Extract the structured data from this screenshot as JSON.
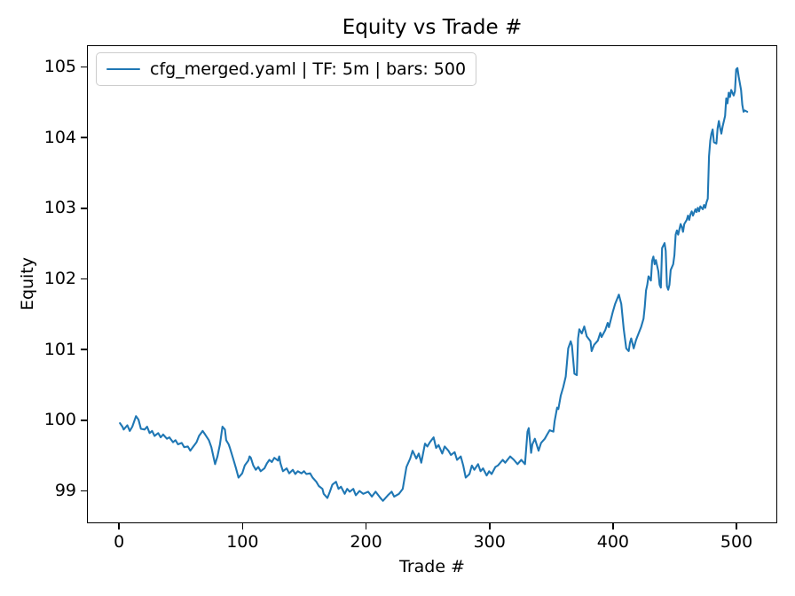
{
  "figure": {
    "background_color": "#ffffff",
    "text_color": "#000000",
    "spine_color": "#000000"
  },
  "legend": {
    "label": "cfg_merged.yaml | TF: 5m | bars: 500",
    "swatch_color": "#1f77b4",
    "border_color": "#cccccc"
  },
  "chart_data": {
    "type": "line",
    "title": "Equity vs Trade #",
    "xlabel": "Trade #",
    "ylabel": "Equity",
    "xlim": [
      -26,
      533
    ],
    "ylim": [
      98.54,
      105.31
    ],
    "xticks": [
      0,
      100,
      200,
      300,
      400,
      500
    ],
    "yticks": [
      99,
      100,
      101,
      102,
      103,
      104,
      105
    ],
    "grid": false,
    "legend_position": "upper-left",
    "series": [
      {
        "name": "cfg_merged.yaml | TF: 5m | bars: 500",
        "color": "#1f77b4",
        "line_width": 2.1,
        "points": [
          [
            0,
            99.97
          ],
          [
            2,
            99.92
          ],
          [
            3,
            99.88
          ],
          [
            6,
            99.94
          ],
          [
            8,
            99.86
          ],
          [
            10,
            99.92
          ],
          [
            13,
            100.07
          ],
          [
            15,
            100.02
          ],
          [
            17,
            99.89
          ],
          [
            20,
            99.88
          ],
          [
            22,
            99.92
          ],
          [
            24,
            99.83
          ],
          [
            26,
            99.86
          ],
          [
            28,
            99.79
          ],
          [
            31,
            99.83
          ],
          [
            33,
            99.77
          ],
          [
            35,
            99.81
          ],
          [
            38,
            99.75
          ],
          [
            40,
            99.77
          ],
          [
            43,
            99.7
          ],
          [
            45,
            99.73
          ],
          [
            47,
            99.67
          ],
          [
            50,
            99.69
          ],
          [
            52,
            99.63
          ],
          [
            55,
            99.64
          ],
          [
            57,
            99.58
          ],
          [
            59,
            99.63
          ],
          [
            62,
            99.7
          ],
          [
            64,
            99.79
          ],
          [
            67,
            99.86
          ],
          [
            69,
            99.81
          ],
          [
            72,
            99.73
          ],
          [
            74,
            99.63
          ],
          [
            76,
            99.47
          ],
          [
            77,
            99.39
          ],
          [
            79,
            99.5
          ],
          [
            81,
            99.67
          ],
          [
            83,
            99.92
          ],
          [
            85,
            99.88
          ],
          [
            86,
            99.73
          ],
          [
            88,
            99.67
          ],
          [
            89,
            99.62
          ],
          [
            92,
            99.45
          ],
          [
            94,
            99.33
          ],
          [
            96,
            99.2
          ],
          [
            99,
            99.26
          ],
          [
            101,
            99.37
          ],
          [
            104,
            99.44
          ],
          [
            105,
            99.5
          ],
          [
            106,
            99.48
          ],
          [
            108,
            99.37
          ],
          [
            110,
            99.31
          ],
          [
            112,
            99.35
          ],
          [
            114,
            99.29
          ],
          [
            117,
            99.33
          ],
          [
            119,
            99.4
          ],
          [
            121,
            99.45
          ],
          [
            123,
            99.42
          ],
          [
            125,
            99.48
          ],
          [
            128,
            99.44
          ],
          [
            129,
            99.5
          ],
          [
            130,
            99.4
          ],
          [
            132,
            99.29
          ],
          [
            135,
            99.33
          ],
          [
            137,
            99.26
          ],
          [
            140,
            99.31
          ],
          [
            142,
            99.25
          ],
          [
            144,
            99.29
          ],
          [
            147,
            99.26
          ],
          [
            149,
            99.29
          ],
          [
            151,
            99.25
          ],
          [
            154,
            99.26
          ],
          [
            156,
            99.2
          ],
          [
            159,
            99.14
          ],
          [
            161,
            99.08
          ],
          [
            164,
            99.04
          ],
          [
            165,
            98.97
          ],
          [
            168,
            98.91
          ],
          [
            170,
            99.0
          ],
          [
            172,
            99.1
          ],
          [
            175,
            99.14
          ],
          [
            177,
            99.04
          ],
          [
            179,
            99.07
          ],
          [
            182,
            98.97
          ],
          [
            184,
            99.04
          ],
          [
            186,
            99.0
          ],
          [
            189,
            99.04
          ],
          [
            191,
            98.95
          ],
          [
            194,
            99.01
          ],
          [
            197,
            98.97
          ],
          [
            201,
            99.0
          ],
          [
            204,
            98.93
          ],
          [
            207,
            99.0
          ],
          [
            211,
            98.91
          ],
          [
            213,
            98.87
          ],
          [
            217,
            98.95
          ],
          [
            220,
            99.0
          ],
          [
            222,
            98.93
          ],
          [
            226,
            98.97
          ],
          [
            229,
            99.04
          ],
          [
            232,
            99.35
          ],
          [
            235,
            99.47
          ],
          [
            237,
            99.58
          ],
          [
            240,
            99.47
          ],
          [
            242,
            99.54
          ],
          [
            244,
            99.41
          ],
          [
            247,
            99.68
          ],
          [
            249,
            99.64
          ],
          [
            251,
            99.7
          ],
          [
            254,
            99.77
          ],
          [
            256,
            99.62
          ],
          [
            258,
            99.66
          ],
          [
            261,
            99.54
          ],
          [
            263,
            99.64
          ],
          [
            266,
            99.58
          ],
          [
            268,
            99.52
          ],
          [
            271,
            99.56
          ],
          [
            273,
            99.45
          ],
          [
            276,
            99.5
          ],
          [
            278,
            99.37
          ],
          [
            280,
            99.2
          ],
          [
            283,
            99.25
          ],
          [
            285,
            99.37
          ],
          [
            287,
            99.31
          ],
          [
            290,
            99.39
          ],
          [
            292,
            99.29
          ],
          [
            294,
            99.33
          ],
          [
            297,
            99.23
          ],
          [
            299,
            99.29
          ],
          [
            301,
            99.25
          ],
          [
            304,
            99.35
          ],
          [
            306,
            99.37
          ],
          [
            310,
            99.45
          ],
          [
            312,
            99.41
          ],
          [
            316,
            99.5
          ],
          [
            319,
            99.45
          ],
          [
            322,
            99.39
          ],
          [
            325,
            99.45
          ],
          [
            328,
            99.39
          ],
          [
            330,
            99.85
          ],
          [
            331,
            99.9
          ],
          [
            333,
            99.55
          ],
          [
            334,
            99.67
          ],
          [
            336,
            99.75
          ],
          [
            339,
            99.58
          ],
          [
            341,
            99.69
          ],
          [
            344,
            99.75
          ],
          [
            346,
            99.81
          ],
          [
            348,
            99.87
          ],
          [
            351,
            99.85
          ],
          [
            352,
            100.0
          ],
          [
            354,
            100.19
          ],
          [
            355,
            100.17
          ],
          [
            357,
            100.36
          ],
          [
            359,
            100.48
          ],
          [
            361,
            100.63
          ],
          [
            363,
            101.03
          ],
          [
            365,
            101.13
          ],
          [
            366,
            101.07
          ],
          [
            368,
            100.67
          ],
          [
            370,
            100.65
          ],
          [
            371,
            101.17
          ],
          [
            372,
            101.3
          ],
          [
            374,
            101.24
          ],
          [
            376,
            101.34
          ],
          [
            378,
            101.2
          ],
          [
            381,
            101.13
          ],
          [
            382,
            100.99
          ],
          [
            384,
            101.08
          ],
          [
            387,
            101.14
          ],
          [
            389,
            101.25
          ],
          [
            390,
            101.19
          ],
          [
            393,
            101.29
          ],
          [
            395,
            101.39
          ],
          [
            396,
            101.33
          ],
          [
            399,
            101.54
          ],
          [
            401,
            101.66
          ],
          [
            404,
            101.79
          ],
          [
            406,
            101.66
          ],
          [
            408,
            101.3
          ],
          [
            410,
            101.03
          ],
          [
            412,
            100.99
          ],
          [
            413,
            101.11
          ],
          [
            414,
            101.17
          ],
          [
            416,
            101.03
          ],
          [
            418,
            101.15
          ],
          [
            420,
            101.24
          ],
          [
            422,
            101.33
          ],
          [
            424,
            101.45
          ],
          [
            425,
            101.62
          ],
          [
            426,
            101.85
          ],
          [
            427,
            101.93
          ],
          [
            428,
            102.05
          ],
          [
            430,
            101.99
          ],
          [
            431,
            102.27
          ],
          [
            432,
            102.33
          ],
          [
            433,
            102.22
          ],
          [
            434,
            102.28
          ],
          [
            436,
            102.12
          ],
          [
            437,
            101.93
          ],
          [
            438,
            101.89
          ],
          [
            439,
            102.45
          ],
          [
            441,
            102.52
          ],
          [
            442,
            102.41
          ],
          [
            443,
            101.91
          ],
          [
            444,
            101.86
          ],
          [
            445,
            101.93
          ],
          [
            446,
            102.14
          ],
          [
            448,
            102.22
          ],
          [
            449,
            102.35
          ],
          [
            450,
            102.64
          ],
          [
            451,
            102.7
          ],
          [
            452,
            102.64
          ],
          [
            454,
            102.79
          ],
          [
            455,
            102.75
          ],
          [
            456,
            102.68
          ],
          [
            457,
            102.79
          ],
          [
            459,
            102.85
          ],
          [
            460,
            102.91
          ],
          [
            461,
            102.85
          ],
          [
            462,
            102.93
          ],
          [
            463,
            102.97
          ],
          [
            464,
            102.91
          ],
          [
            466,
            103.0
          ],
          [
            467,
            102.96
          ],
          [
            468,
            103.02
          ],
          [
            469,
            102.97
          ],
          [
            470,
            103.04
          ],
          [
            472,
            103.0
          ],
          [
            473,
            103.06
          ],
          [
            474,
            103.02
          ],
          [
            475,
            103.1
          ],
          [
            476,
            103.15
          ],
          [
            477,
            103.75
          ],
          [
            478,
            103.97
          ],
          [
            479,
            104.07
          ],
          [
            480,
            104.13
          ],
          [
            481,
            103.95
          ],
          [
            483,
            103.93
          ],
          [
            484,
            104.15
          ],
          [
            485,
            104.25
          ],
          [
            486,
            104.15
          ],
          [
            487,
            104.07
          ],
          [
            488,
            104.17
          ],
          [
            490,
            104.32
          ],
          [
            491,
            104.57
          ],
          [
            492,
            104.5
          ],
          [
            493,
            104.65
          ],
          [
            494,
            104.59
          ],
          [
            495,
            104.69
          ],
          [
            497,
            104.61
          ],
          [
            498,
            104.67
          ],
          [
            499,
            104.98
          ],
          [
            500,
            105.0
          ],
          [
            501,
            104.88
          ],
          [
            503,
            104.69
          ],
          [
            504,
            104.48
          ],
          [
            505,
            104.38
          ],
          [
            506,
            104.4
          ],
          [
            508,
            104.38
          ]
        ]
      }
    ]
  }
}
